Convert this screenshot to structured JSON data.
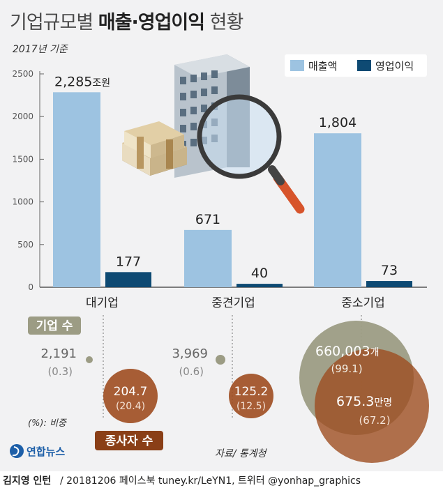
{
  "title_light_1": "기업규모별 ",
  "title_bold": "매출·영업이익",
  "title_light_2": " 현황",
  "subtitle": "2017년 기준",
  "colors": {
    "sales": "#9dc3e1",
    "profit": "#0e4a73",
    "gray_circle": "#9c9c84",
    "brown_circle": "#9e4d20"
  },
  "chart_data": [
    {
      "type": "bar",
      "categories": [
        "대기업",
        "중견기업",
        "중소기업"
      ],
      "series": [
        {
          "name": "매출액",
          "values": [
            2285,
            671,
            1804
          ],
          "labels": [
            "2,285",
            "671",
            "1,804"
          ]
        },
        {
          "name": "영업이익",
          "values": [
            177,
            40,
            73
          ],
          "labels": [
            "177",
            "40",
            "73"
          ]
        }
      ],
      "unit_label": "조원",
      "yticks": [
        0,
        500,
        1000,
        1500,
        2000,
        2500
      ],
      "ylim": [
        0,
        2500
      ],
      "legend_position": "top-right",
      "grid": false
    },
    {
      "type": "bubble",
      "categories": [
        "대기업",
        "중견기업",
        "중소기업"
      ],
      "series": [
        {
          "name": "기업 수",
          "values": [
            2191,
            3969,
            660003
          ],
          "labels": [
            "2,191",
            "3,969",
            "660,003"
          ],
          "shares": [
            "(0.3)",
            "(0.6)",
            "(99.1)"
          ],
          "unit": "개"
        },
        {
          "name": "종사자 수",
          "values": [
            204.7,
            125.2,
            675.3
          ],
          "labels": [
            "204.7",
            "125.2",
            "675.3"
          ],
          "shares": [
            "(20.4)",
            "(12.5)",
            "(67.2)"
          ],
          "unit": "만명"
        }
      ],
      "share_note": "(%): 비중"
    }
  ],
  "source": "자료/ 통계청",
  "logo_text": "연합뉴스",
  "credit": {
    "author": "김지영 인턴",
    "rest": " / 20181206  페이스북 tuney.kr/LeYN1, 트위터 @yonhap_graphics"
  }
}
